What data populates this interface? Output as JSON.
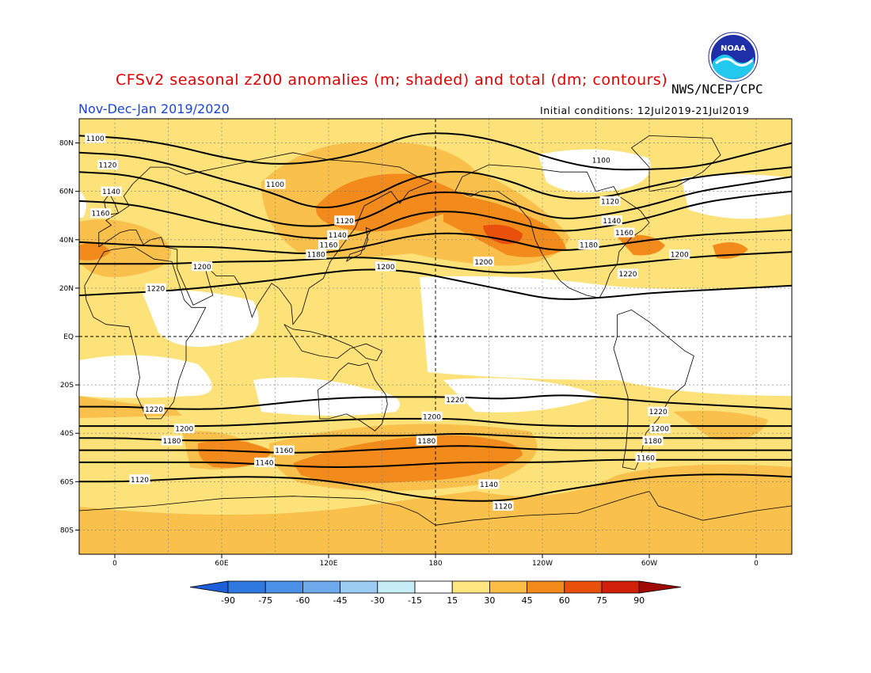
{
  "title": "CFSv2 seasonal z200 anomalies (m; shaded) and total (dm; contours)",
  "agency": "NWS/NCEP/CPC",
  "period": "Nov-Dec-Jan 2019/2020",
  "initial_conditions": "Initial conditions: 12Jul2019-21Jul2019",
  "colors": {
    "title": "#e00000",
    "period": "#1a44d6",
    "neg90": "#1e5fd8",
    "neg75": "#2e78e0",
    "neg60": "#4a90e6",
    "neg45": "#6eaaeb",
    "neg30": "#9dccf2",
    "neg15": "#c6ecf5",
    "zero": "#ffffff",
    "pos15": "#ffe680",
    "pos30": "#fbbe45",
    "pos45": "#f28a1c",
    "pos60": "#e8500c",
    "pos75": "#d0200a",
    "pos90": "#a00a05",
    "pos15_fill": "#fde27a",
    "pos30_fill": "#f9c04c"
  },
  "map": {
    "lat_ticks": [
      {
        "lat": 80,
        "label": "80N"
      },
      {
        "lat": 60,
        "label": "60N"
      },
      {
        "lat": 40,
        "label": "40N"
      },
      {
        "lat": 20,
        "label": "20N"
      },
      {
        "lat": 0,
        "label": "EQ"
      },
      {
        "lat": -20,
        "label": "20S"
      },
      {
        "lat": -40,
        "label": "40S"
      },
      {
        "lat": -60,
        "label": "60S"
      },
      {
        "lat": -80,
        "label": "80S"
      }
    ],
    "lon_ticks": [
      {
        "lon": 0,
        "label": "0"
      },
      {
        "lon": 60,
        "label": "60E"
      },
      {
        "lon": 120,
        "label": "120E"
      },
      {
        "lon": 180,
        "label": "180"
      },
      {
        "lon": 240,
        "label": "120W"
      },
      {
        "lon": 300,
        "label": "60W"
      },
      {
        "lon": 360,
        "label": "0"
      }
    ],
    "contours": [
      {
        "value": "1100",
        "lats": [
          83,
          82,
          79,
          74,
          71,
          72,
          76,
          84,
          84,
          80,
          73,
          69,
          69,
          70,
          75,
          80
        ]
      },
      {
        "value": "1120",
        "lats": [
          76,
          75,
          71,
          65,
          60,
          52,
          56,
          66,
          69,
          65,
          57,
          57,
          62,
          66,
          68,
          70
        ]
      },
      {
        "value": "1140",
        "lats": [
          68,
          67,
          62,
          55,
          47,
          45,
          48,
          59,
          60,
          56,
          48,
          50,
          54,
          60,
          63,
          66
        ]
      },
      {
        "value": "1160",
        "lats": [
          56,
          55,
          51,
          46,
          43,
          40,
          42,
          51,
          52,
          48,
          43,
          45,
          49,
          55,
          58,
          60
        ]
      },
      {
        "value": "1180",
        "lats": [
          39,
          38,
          37,
          37,
          35,
          34,
          37,
          42,
          43,
          40,
          35,
          37,
          40,
          42,
          43,
          44
        ]
      },
      {
        "value": "1200",
        "lats": [
          30,
          30,
          30,
          31,
          31,
          32,
          33,
          31,
          28,
          26,
          27,
          29,
          31,
          33,
          34,
          35
        ]
      },
      {
        "value": "1220",
        "lats": [
          17,
          18,
          19,
          21,
          23,
          26,
          28,
          27,
          23,
          19,
          15,
          16,
          18,
          19,
          20,
          21
        ]
      },
      {
        "value": "1220",
        "lats": [
          -29,
          -29,
          -30,
          -30,
          -28,
          -26,
          -25,
          -25,
          -25,
          -26,
          -24,
          -25,
          -27,
          -28,
          -29,
          -30
        ]
      },
      {
        "value": "1200",
        "lats": [
          -37,
          -37,
          -37,
          -37,
          -36,
          -35,
          -34,
          -34,
          -34,
          -36,
          -37,
          -37,
          -37,
          -37,
          -37,
          -37
        ]
      },
      {
        "value": "1180",
        "lats": [
          -42,
          -42,
          -43,
          -43,
          -42,
          -41,
          -41,
          -41,
          -40,
          -41,
          -42,
          -42,
          -42,
          -42,
          -42,
          -42
        ]
      },
      {
        "value": "1160",
        "lats": [
          -47,
          -47,
          -47,
          -47,
          -48,
          -48,
          -47,
          -46,
          -45,
          -46,
          -47,
          -47,
          -47,
          -47,
          -47,
          -47
        ]
      },
      {
        "value": "1140",
        "lats": [
          -52,
          -52,
          -52,
          -52,
          -53,
          -54,
          -54,
          -53,
          -52,
          -52,
          -52,
          -51,
          -51,
          -51,
          -51,
          -51
        ]
      },
      {
        "value": "1120",
        "lats": [
          -60,
          -60,
          -59,
          -58,
          -58,
          -59,
          -62,
          -66,
          -68,
          -68,
          -64,
          -61,
          -58,
          -57,
          -57,
          -58
        ]
      }
    ],
    "contour_labels": [
      {
        "value": "1100",
        "lon": -11,
        "lat": 82
      },
      {
        "value": "1120",
        "lon": -4,
        "lat": 71
      },
      {
        "value": "1140",
        "lon": -2,
        "lat": 60
      },
      {
        "value": "1160",
        "lon": -8,
        "lat": 51
      },
      {
        "value": "1100",
        "lon": 90,
        "lat": 63
      },
      {
        "value": "1100",
        "lon": 273,
        "lat": 73
      },
      {
        "value": "1120",
        "lon": 129,
        "lat": 48
      },
      {
        "value": "1140",
        "lon": 125,
        "lat": 42
      },
      {
        "value": "1160",
        "lon": 120,
        "lat": 38
      },
      {
        "value": "1120",
        "lon": 278,
        "lat": 56
      },
      {
        "value": "1140",
        "lon": 279,
        "lat": 48
      },
      {
        "value": "1160",
        "lon": 286,
        "lat": 43
      },
      {
        "value": "1180",
        "lon": 113,
        "lat": 34
      },
      {
        "value": "1180",
        "lon": 266,
        "lat": 38
      },
      {
        "value": "1200",
        "lon": 49,
        "lat": 29
      },
      {
        "value": "1200",
        "lon": 152,
        "lat": 29
      },
      {
        "value": "1200",
        "lon": 207,
        "lat": 31
      },
      {
        "value": "1200",
        "lon": 317,
        "lat": 34
      },
      {
        "value": "1220",
        "lon": 23,
        "lat": 20
      },
      {
        "value": "1220",
        "lon": 288,
        "lat": 26
      },
      {
        "value": "1220",
        "lon": 191,
        "lat": -26
      },
      {
        "value": "1220",
        "lon": 22,
        "lat": -30
      },
      {
        "value": "1220",
        "lon": 305,
        "lat": -31
      },
      {
        "value": "1200",
        "lon": 178,
        "lat": -33
      },
      {
        "value": "1200",
        "lon": 39,
        "lat": -38
      },
      {
        "value": "1200",
        "lon": 306,
        "lat": -38
      },
      {
        "value": "1180",
        "lon": 32,
        "lat": -43
      },
      {
        "value": "1180",
        "lon": 175,
        "lat": -43
      },
      {
        "value": "1180",
        "lon": 302,
        "lat": -43
      },
      {
        "value": "1160",
        "lon": 95,
        "lat": -47
      },
      {
        "value": "1160",
        "lon": 298,
        "lat": -50
      },
      {
        "value": "1140",
        "lon": 84,
        "lat": -52
      },
      {
        "value": "1140",
        "lon": 210,
        "lat": -61
      },
      {
        "value": "1120",
        "lon": 14,
        "lat": -59
      },
      {
        "value": "1120",
        "lon": 218,
        "lat": -70
      }
    ]
  },
  "legend": {
    "labels": [
      "-90",
      "-75",
      "-60",
      "-45",
      "-30",
      "-15",
      "15",
      "30",
      "45",
      "60",
      "75",
      "90"
    ],
    "colors": [
      "#2e78e0",
      "#4a90e6",
      "#6eaaeb",
      "#9dccf2",
      "#c6ecf5",
      "#ffffff",
      "#ffe680",
      "#fbbe45",
      "#f28a1c",
      "#e8500c",
      "#d0200a"
    ],
    "end_left_color": "#1e5fd8",
    "end_right_color": "#a00a05"
  },
  "logo": {
    "text": "NOAA"
  }
}
